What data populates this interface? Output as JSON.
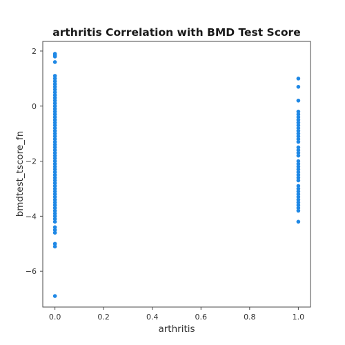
{
  "chart_data": {
    "type": "scatter",
    "title": "arthritis Correlation with BMD Test Score",
    "xlabel": "arthritis",
    "ylabel": "bmdtest_tscore_fn",
    "xlim": [
      -0.05,
      1.05
    ],
    "ylim": [
      -7.3,
      2.35
    ],
    "xticks": [
      0.0,
      0.2,
      0.4,
      0.6,
      0.8,
      1.0
    ],
    "xtick_labels": [
      "0.0",
      "0.2",
      "0.4",
      "0.6",
      "0.8",
      "1.0"
    ],
    "yticks": [
      -6,
      -4,
      -2,
      0,
      2
    ],
    "ytick_labels": [
      "−6",
      "−4",
      "−2",
      "0",
      "2"
    ],
    "grid": false,
    "point_color": "#1f88e5",
    "series": [
      {
        "x_value": 0,
        "y_values": [
          1.9,
          1.85,
          1.8,
          1.6,
          1.1,
          1.0,
          0.9,
          0.8,
          0.7,
          0.6,
          0.5,
          0.4,
          0.3,
          0.2,
          0.1,
          0.0,
          -0.1,
          -0.2,
          -0.3,
          -0.4,
          -0.5,
          -0.6,
          -0.7,
          -0.8,
          -0.9,
          -1.0,
          -1.1,
          -1.2,
          -1.3,
          -1.4,
          -1.5,
          -1.6,
          -1.7,
          -1.8,
          -1.9,
          -2.0,
          -2.1,
          -2.2,
          -2.3,
          -2.4,
          -2.5,
          -2.6,
          -2.7,
          -2.8,
          -2.9,
          -3.0,
          -3.1,
          -3.2,
          -3.3,
          -3.4,
          -3.5,
          -3.6,
          -3.7,
          -3.8,
          -3.9,
          -4.0,
          -4.1,
          -4.2,
          -4.4,
          -4.5,
          -4.6,
          -5.0,
          -5.1,
          -6.9
        ]
      },
      {
        "x_value": 1,
        "y_values": [
          1.0,
          0.7,
          0.2,
          -0.2,
          -0.3,
          -0.4,
          -0.5,
          -0.6,
          -0.7,
          -0.8,
          -0.9,
          -1.0,
          -1.1,
          -1.2,
          -1.3,
          -1.5,
          -1.6,
          -1.7,
          -1.8,
          -2.0,
          -2.1,
          -2.2,
          -2.3,
          -2.4,
          -2.5,
          -2.6,
          -2.7,
          -2.9,
          -3.0,
          -3.1,
          -3.2,
          -3.3,
          -3.4,
          -3.5,
          -3.6,
          -3.7,
          -3.8,
          -4.2
        ]
      }
    ]
  }
}
